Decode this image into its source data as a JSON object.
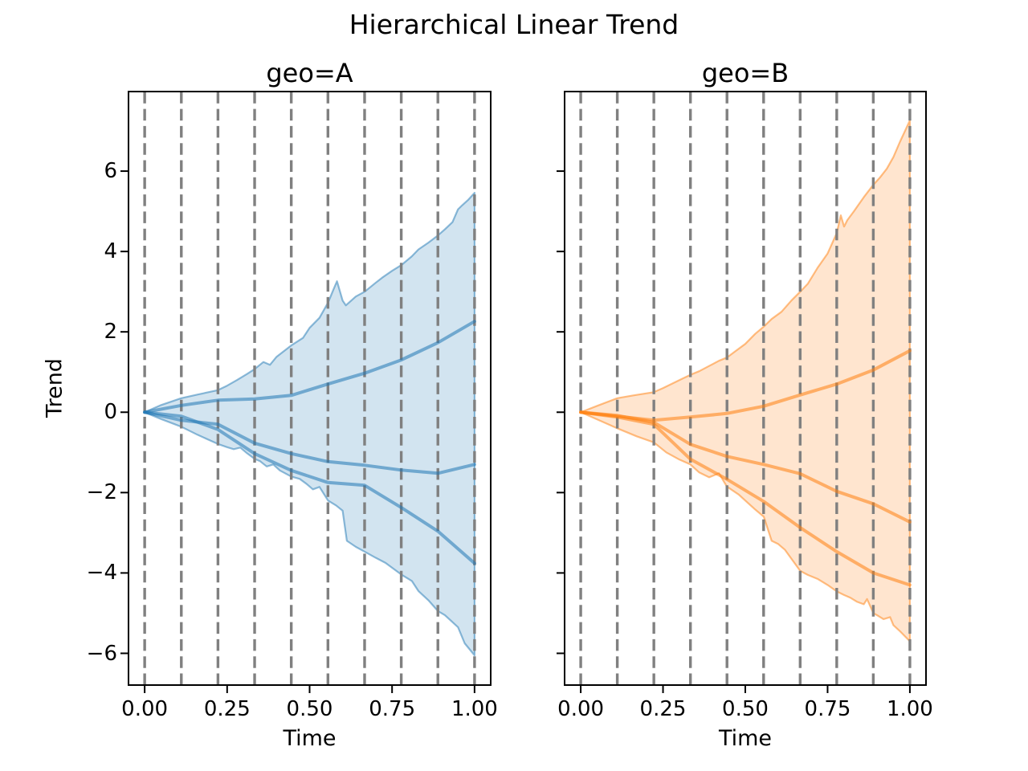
{
  "figure": {
    "title": "Hierarchical Linear Trend",
    "background": "#ffffff",
    "gridline_color": "#808080",
    "spine_color": "#000000",
    "text_color": "#000000"
  },
  "chart_data": [
    {
      "type": "line",
      "geo": "A",
      "title": "geo=A",
      "xlabel": "Time",
      "ylabel": "Trend",
      "color": "#1f77b4",
      "band_fill_opacity": 0.2,
      "band_edge_opacity": 0.5,
      "line_opacity": 0.55,
      "xlim": [
        -0.049,
        1.049
      ],
      "ylim": [
        -6.79,
        7.98
      ],
      "xticks": [
        0,
        0.25,
        0.5,
        0.75,
        1.0
      ],
      "xtick_labels": [
        "0.00",
        "0.25",
        "0.50",
        "0.75",
        "1.00"
      ],
      "yticks": [
        -6,
        -4,
        -2,
        0,
        2,
        4,
        6
      ],
      "ytick_labels": [
        "−6",
        "−4",
        "−2",
        "0",
        "2",
        "4",
        "6"
      ],
      "show_ytick_labels": true,
      "changepoints": [
        0,
        0.1111,
        0.2222,
        0.3333,
        0.4444,
        0.5556,
        0.6667,
        0.7778,
        0.8889,
        1.0
      ],
      "band": {
        "x_upper": [
          0,
          0.05,
          0.111,
          0.16,
          0.222,
          0.25,
          0.28,
          0.31,
          0.333,
          0.36,
          0.38,
          0.4,
          0.444,
          0.48,
          0.5,
          0.53,
          0.556,
          0.572,
          0.583,
          0.6,
          0.61,
          0.64,
          0.667,
          0.7,
          0.72,
          0.75,
          0.778,
          0.81,
          0.83,
          0.86,
          0.889,
          0.91,
          0.933,
          0.95,
          0.96,
          0.98,
          1.0
        ],
        "upper": [
          0,
          0.18,
          0.35,
          0.44,
          0.55,
          0.66,
          0.8,
          0.95,
          1.07,
          1.25,
          1.18,
          1.38,
          1.66,
          1.85,
          2.1,
          2.35,
          2.73,
          3.05,
          3.26,
          2.78,
          2.66,
          2.88,
          3.0,
          3.22,
          3.35,
          3.52,
          3.66,
          3.88,
          4.05,
          4.22,
          4.4,
          4.55,
          4.73,
          5.05,
          5.13,
          5.28,
          5.46
        ],
        "x_lower": [
          0,
          0.05,
          0.111,
          0.16,
          0.222,
          0.25,
          0.27,
          0.29,
          0.31,
          0.333,
          0.35,
          0.37,
          0.39,
          0.41,
          0.444,
          0.47,
          0.49,
          0.51,
          0.53,
          0.556,
          0.58,
          0.6,
          0.613,
          0.64,
          0.667,
          0.7,
          0.73,
          0.778,
          0.81,
          0.83,
          0.86,
          0.889,
          0.91,
          0.93,
          0.95,
          0.97,
          1.0
        ],
        "lower": [
          0,
          -0.17,
          -0.36,
          -0.56,
          -0.79,
          -0.87,
          -0.92,
          -0.88,
          -1.02,
          -1.16,
          -1.22,
          -1.35,
          -1.3,
          -1.45,
          -1.6,
          -1.66,
          -1.78,
          -1.92,
          -1.86,
          -2.2,
          -2.32,
          -2.45,
          -3.2,
          -3.35,
          -3.47,
          -3.62,
          -3.75,
          -4.04,
          -4.2,
          -4.45,
          -4.68,
          -4.95,
          -5.05,
          -5.2,
          -5.35,
          -5.75,
          -6.05
        ]
      },
      "sample_x": [
        0,
        0.1111,
        0.2222,
        0.3333,
        0.4444,
        0.5556,
        0.6667,
        0.7778,
        0.8889,
        1.0
      ],
      "samples": [
        [
          0,
          0.17,
          0.3,
          0.33,
          0.42,
          0.7,
          0.97,
          1.3,
          1.73,
          2.26
        ],
        [
          0,
          -0.2,
          -0.3,
          -0.77,
          -1.03,
          -1.23,
          -1.32,
          -1.44,
          -1.52,
          -1.3
        ],
        [
          0,
          -0.1,
          -0.43,
          -1.03,
          -1.45,
          -1.75,
          -1.82,
          -2.37,
          -2.96,
          -3.76
        ]
      ]
    },
    {
      "type": "line",
      "geo": "B",
      "title": "geo=B",
      "xlabel": "Time",
      "ylabel": "",
      "color": "#ff7f0e",
      "band_fill_opacity": 0.2,
      "band_edge_opacity": 0.5,
      "line_opacity": 0.55,
      "xlim": [
        -0.049,
        1.049
      ],
      "ylim": [
        -6.79,
        7.98
      ],
      "xticks": [
        0,
        0.25,
        0.5,
        0.75,
        1.0
      ],
      "xtick_labels": [
        "0.00",
        "0.25",
        "0.50",
        "0.75",
        "1.00"
      ],
      "yticks": [
        -6,
        -4,
        -2,
        0,
        2,
        4,
        6
      ],
      "ytick_labels": [
        "−6",
        "−4",
        "−2",
        "0",
        "2",
        "4",
        "6"
      ],
      "show_ytick_labels": false,
      "changepoints": [
        0,
        0.1111,
        0.2222,
        0.3333,
        0.4444,
        0.5556,
        0.6667,
        0.7778,
        0.8889,
        1.0
      ],
      "band": {
        "x_upper": [
          0,
          0.05,
          0.111,
          0.16,
          0.222,
          0.25,
          0.28,
          0.31,
          0.333,
          0.36,
          0.39,
          0.42,
          0.444,
          0.47,
          0.5,
          0.53,
          0.556,
          0.58,
          0.61,
          0.64,
          0.667,
          0.69,
          0.72,
          0.75,
          0.778,
          0.79,
          0.8,
          0.81,
          0.83,
          0.86,
          0.889,
          0.91,
          0.93,
          0.95,
          0.97,
          1.0
        ],
        "upper": [
          0,
          0.16,
          0.35,
          0.42,
          0.5,
          0.6,
          0.72,
          0.84,
          0.93,
          1.02,
          1.15,
          1.28,
          1.36,
          1.52,
          1.7,
          1.95,
          2.13,
          2.32,
          2.5,
          2.78,
          3.0,
          3.2,
          3.6,
          3.95,
          4.46,
          4.9,
          4.62,
          4.78,
          5.0,
          5.35,
          5.66,
          5.85,
          6.06,
          6.35,
          6.73,
          7.26
        ],
        "x_lower": [
          0,
          0.05,
          0.111,
          0.17,
          0.222,
          0.26,
          0.3,
          0.333,
          0.36,
          0.39,
          0.42,
          0.444,
          0.48,
          0.5,
          0.53,
          0.556,
          0.58,
          0.6,
          0.62,
          0.667,
          0.69,
          0.72,
          0.75,
          0.778,
          0.8,
          0.82,
          0.84,
          0.86,
          0.87,
          0.889,
          0.9,
          0.92,
          0.94,
          0.95,
          0.97,
          1.0
        ],
        "lower": [
          0,
          -0.18,
          -0.4,
          -0.6,
          -0.75,
          -1.0,
          -1.18,
          -1.3,
          -1.5,
          -1.62,
          -1.52,
          -1.85,
          -2.05,
          -2.2,
          -2.42,
          -2.6,
          -3.2,
          -3.28,
          -3.42,
          -3.95,
          -4.05,
          -4.15,
          -4.3,
          -4.46,
          -4.55,
          -4.62,
          -4.72,
          -4.78,
          -4.65,
          -5.0,
          -5.05,
          -5.15,
          -5.1,
          -5.3,
          -5.45,
          -5.7
        ]
      },
      "sample_x": [
        0,
        0.1111,
        0.2222,
        0.3333,
        0.4444,
        0.5556,
        0.6667,
        0.7778,
        0.8889,
        1.0
      ],
      "samples": [
        [
          0,
          -0.1,
          -0.2,
          -0.12,
          -0.03,
          0.15,
          0.43,
          0.7,
          1.05,
          1.53
        ],
        [
          0,
          -0.08,
          -0.25,
          -0.8,
          -1.1,
          -1.3,
          -1.53,
          -1.97,
          -2.28,
          -2.73
        ],
        [
          0,
          -0.12,
          -0.3,
          -1.17,
          -1.67,
          -2.22,
          -2.87,
          -3.47,
          -4.0,
          -4.3
        ]
      ]
    }
  ]
}
